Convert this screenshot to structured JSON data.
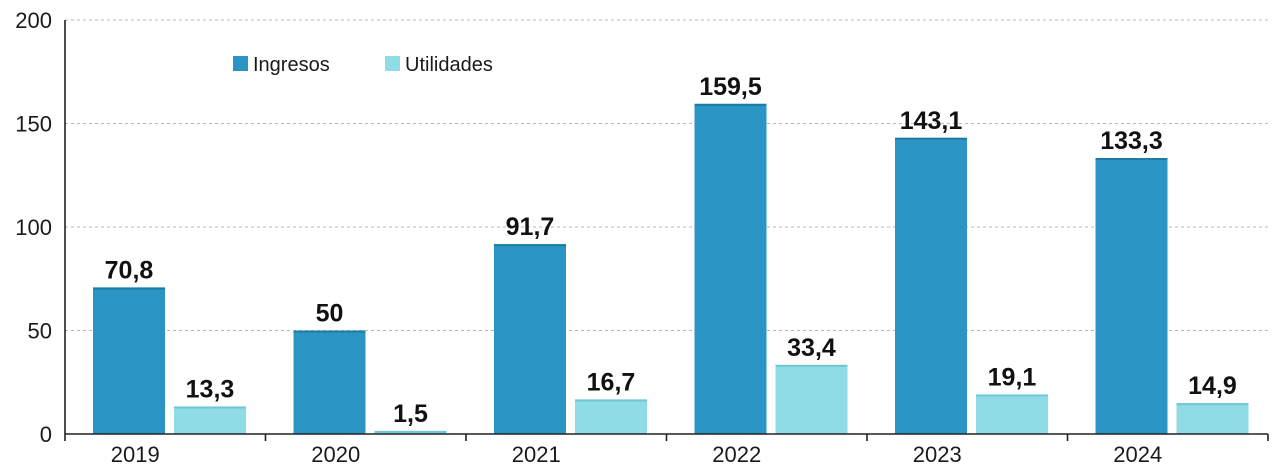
{
  "chart_data": {
    "type": "bar",
    "categories": [
      "2019",
      "2020",
      "2021",
      "2022",
      "2023",
      "2024"
    ],
    "series": [
      {
        "name": "Ingresos",
        "values": [
          70.8,
          50,
          91.7,
          159.5,
          143.1,
          133.3
        ],
        "labels": [
          "70,8",
          "50",
          "91,7",
          "159,5",
          "143,1",
          "133,3"
        ],
        "color": "#2a95c4"
      },
      {
        "name": "Utilidades",
        "values": [
          13.3,
          1.5,
          16.7,
          33.4,
          19.1,
          14.9
        ],
        "labels": [
          "13,3",
          "1,5",
          "16,7",
          "33,4",
          "19,1",
          "14,9"
        ],
        "color": "#8fdbe6"
      }
    ],
    "yticks": [
      "0",
      "50",
      "100",
      "150",
      "200"
    ],
    "ylim": [
      0,
      200
    ],
    "grid": true,
    "legend_position": "top-left"
  }
}
